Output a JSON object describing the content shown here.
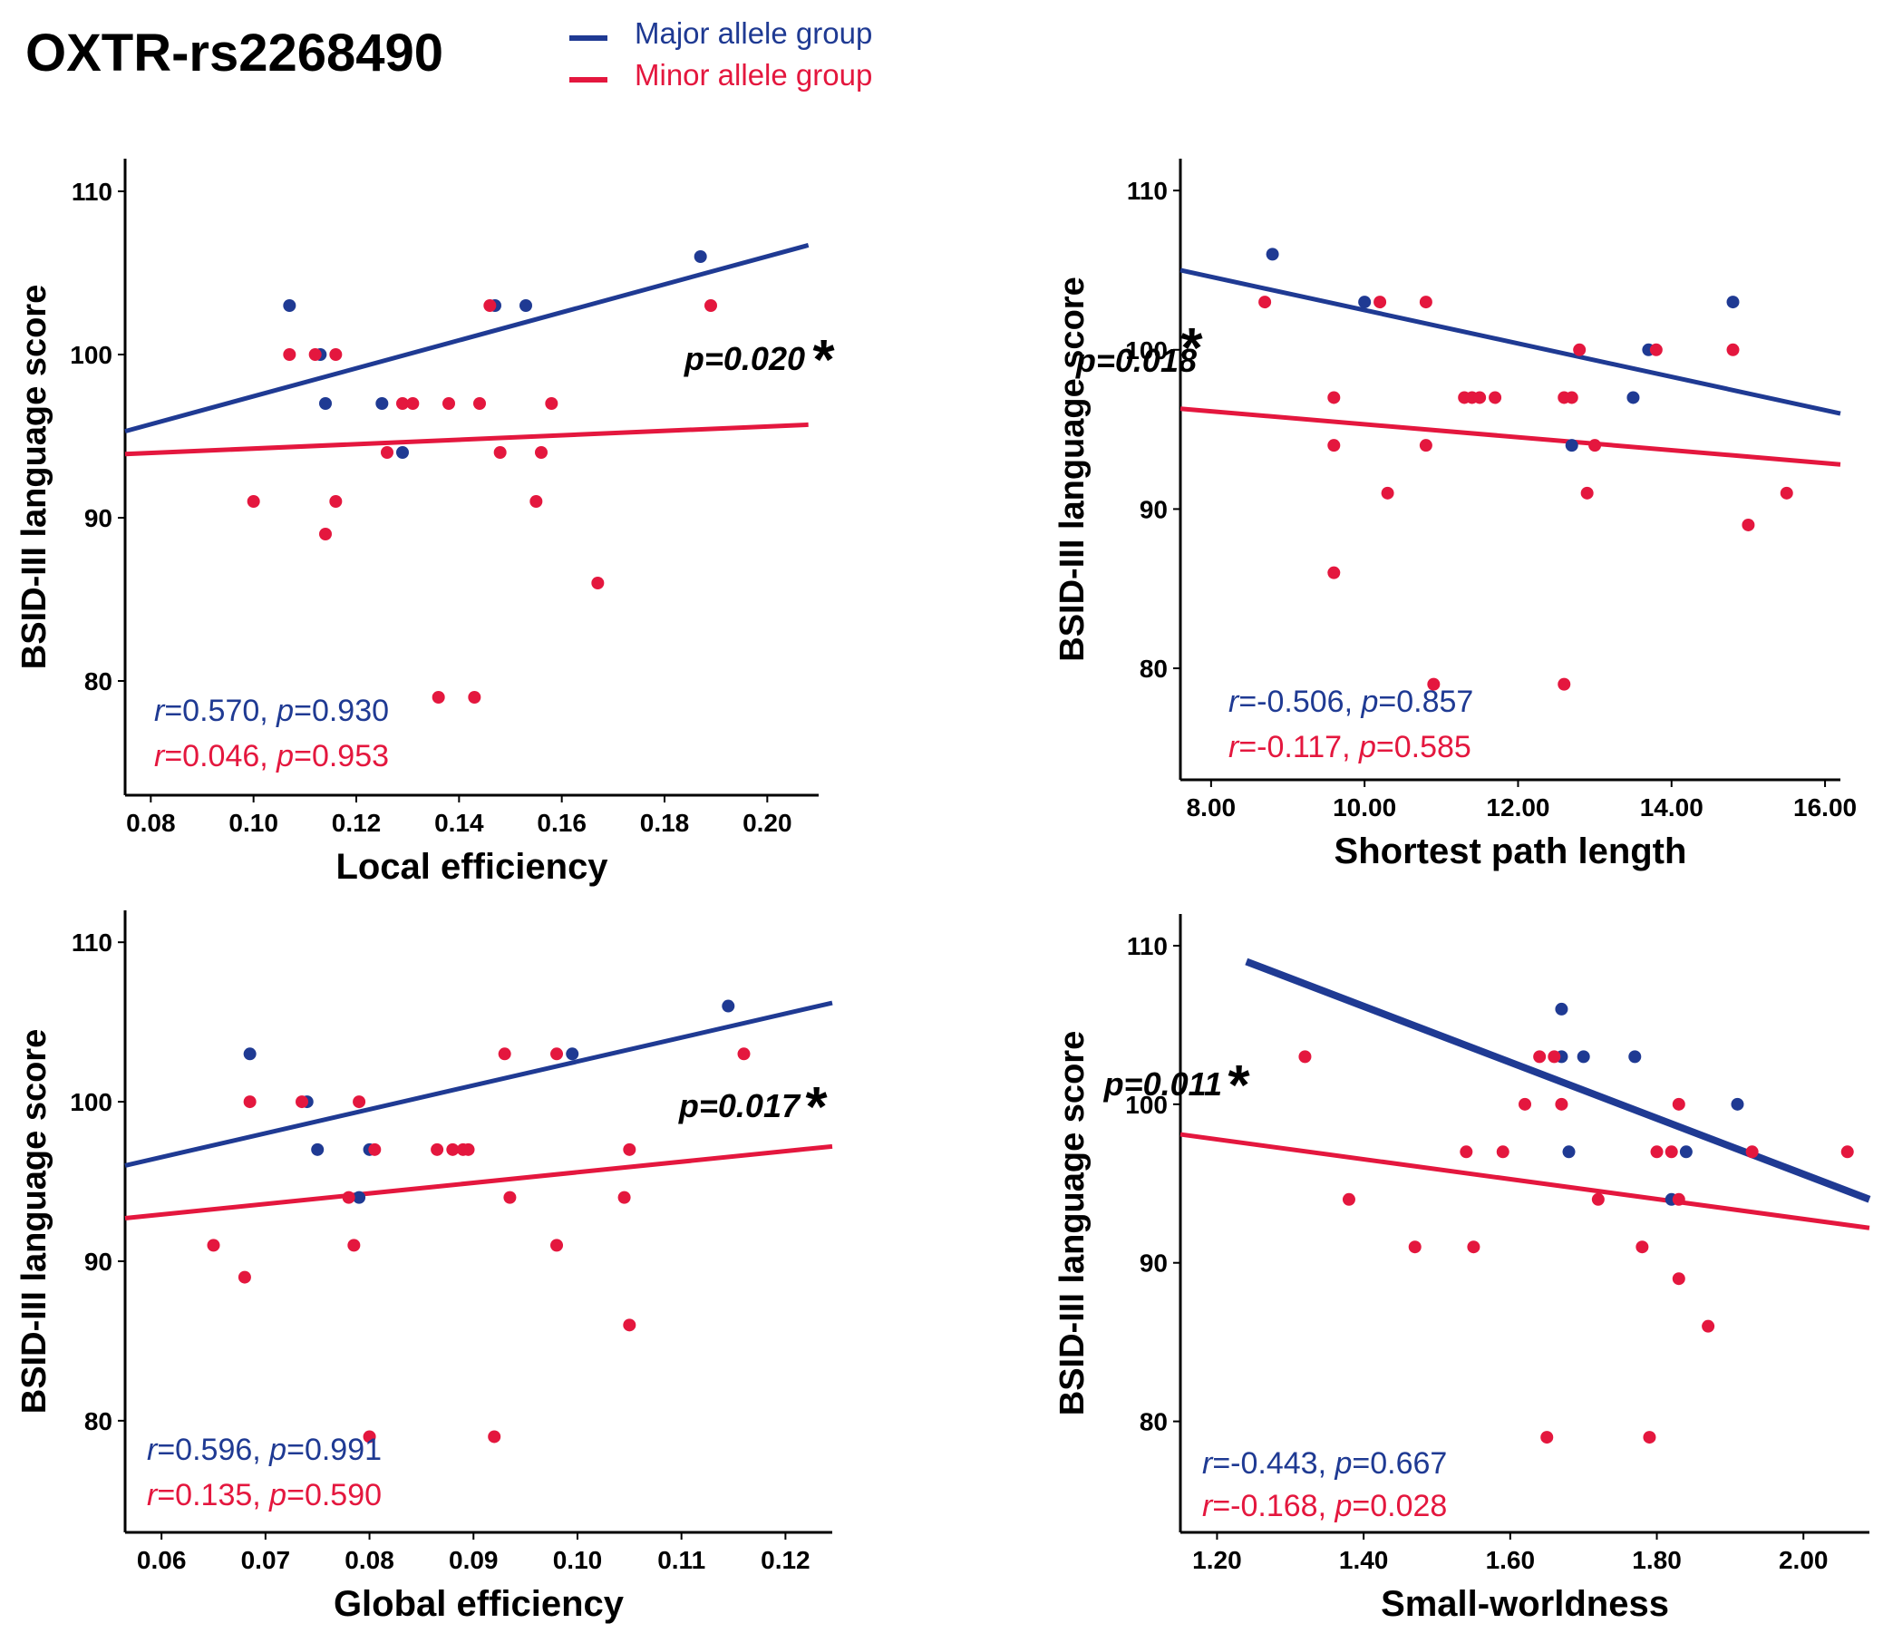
{
  "figure": {
    "title": "OXTR-rs2268490",
    "legend": [
      {
        "label": "Major allele group",
        "color": "#1f3a93"
      },
      {
        "label": "Minor allele group",
        "color": "#e4173e"
      }
    ]
  },
  "colors": {
    "major": "#1f3a93",
    "minor": "#e4173e",
    "axis": "#000000"
  },
  "chart_data": [
    {
      "type": "scatter",
      "xlabel": "Local efficiency",
      "ylabel": "BSID-III language score",
      "xlim": [
        0.075,
        0.21
      ],
      "ylim": [
        73,
        112
      ],
      "xticks": [
        0.08,
        0.1,
        0.12,
        0.14,
        0.16,
        0.18,
        0.2
      ],
      "xtick_labels": [
        "0.08",
        "0.10",
        "0.12",
        "0.14",
        "0.16",
        "0.18",
        "0.20"
      ],
      "yticks": [
        80,
        90,
        100,
        110
      ],
      "ytick_labels": [
        "80",
        "90",
        "100",
        "110"
      ],
      "series": [
        {
          "name": "Major allele group",
          "group": "major",
          "points": [
            [
              0.107,
              103
            ],
            [
              0.113,
              100
            ],
            [
              0.114,
              97
            ],
            [
              0.125,
              97
            ],
            [
              0.129,
              94
            ],
            [
              0.147,
              103
            ],
            [
              0.153,
              103
            ],
            [
              0.187,
              106
            ]
          ],
          "fit": [
            [
              0.075,
              95.3
            ],
            [
              0.208,
              106.7
            ]
          ]
        },
        {
          "name": "Minor allele group",
          "group": "minor",
          "points": [
            [
              0.1,
              91
            ],
            [
              0.107,
              100
            ],
            [
              0.112,
              100
            ],
            [
              0.114,
              89
            ],
            [
              0.116,
              100
            ],
            [
              0.116,
              91
            ],
            [
              0.126,
              94
            ],
            [
              0.129,
              97
            ],
            [
              0.131,
              97
            ],
            [
              0.136,
              79
            ],
            [
              0.138,
              97
            ],
            [
              0.143,
              79
            ],
            [
              0.144,
              97
            ],
            [
              0.146,
              103
            ],
            [
              0.148,
              94
            ],
            [
              0.155,
              91
            ],
            [
              0.156,
              94
            ],
            [
              0.158,
              97
            ],
            [
              0.167,
              86
            ],
            [
              0.189,
              103
            ]
          ],
          "fit": [
            [
              0.075,
              93.9
            ],
            [
              0.208,
              95.7
            ]
          ]
        }
      ],
      "pvalue_annotation": {
        "text": "p=0.020",
        "star": "*"
      },
      "stats": [
        {
          "group": "major",
          "r_label": "r",
          "r_value": "=0.570, ",
          "p_label": "p",
          "p_value": "=0.930"
        },
        {
          "group": "minor",
          "r_label": "r",
          "r_value": "=0.046, ",
          "p_label": "p",
          "p_value": "=0.953"
        }
      ]
    },
    {
      "type": "scatter",
      "xlabel": "Shortest path length",
      "ylabel": "BSID-III language score",
      "xlim": [
        7.6,
        16.2
      ],
      "ylim": [
        73,
        112
      ],
      "xticks": [
        8,
        10,
        12,
        14,
        16
      ],
      "xtick_labels": [
        "8.00",
        "10.00",
        "12.00",
        "14.00",
        "16.00"
      ],
      "yticks": [
        80,
        90,
        100,
        110
      ],
      "ytick_labels": [
        "80",
        "90",
        "100",
        "110"
      ],
      "series": [
        {
          "name": "Major allele group",
          "group": "major",
          "points": [
            [
              8.8,
              106
            ],
            [
              10.0,
              103
            ],
            [
              12.7,
              94
            ],
            [
              13.5,
              97
            ],
            [
              13.7,
              100
            ],
            [
              14.8,
              103
            ]
          ],
          "fit": [
            [
              7.6,
              105
            ],
            [
              16.2,
              96
            ]
          ]
        },
        {
          "name": "Minor allele group",
          "group": "minor",
          "points": [
            [
              8.7,
              103
            ],
            [
              9.6,
              97
            ],
            [
              9.6,
              94
            ],
            [
              9.6,
              86
            ],
            [
              10.2,
              103
            ],
            [
              10.3,
              91
            ],
            [
              10.8,
              103
            ],
            [
              10.9,
              79
            ],
            [
              10.8,
              94
            ],
            [
              11.3,
              97
            ],
            [
              11.4,
              97
            ],
            [
              11.5,
              97
            ],
            [
              11.7,
              97
            ],
            [
              12.6,
              97
            ],
            [
              12.6,
              79
            ],
            [
              12.7,
              97
            ],
            [
              12.8,
              100
            ],
            [
              12.9,
              91
            ],
            [
              13.0,
              94
            ],
            [
              13.8,
              100
            ],
            [
              14.8,
              100
            ],
            [
              15.0,
              89
            ],
            [
              15.5,
              91
            ]
          ],
          "fit": [
            [
              7.6,
              96.3
            ],
            [
              16.2,
              92.8
            ]
          ]
        }
      ],
      "pvalue_annotation": {
        "text": "p=0.018",
        "star": "*"
      },
      "stats": [
        {
          "group": "major",
          "r_label": "r",
          "r_value": "=-0.506, ",
          "p_label": "p",
          "p_value": "=0.857"
        },
        {
          "group": "minor",
          "r_label": "r",
          "r_value": "=-0.117, ",
          "p_label": "p",
          "p_value": "=0.585"
        }
      ]
    },
    {
      "type": "scatter",
      "xlabel": "Global efficiency",
      "ylabel": "BSID-III language score",
      "xlim": [
        0.0565,
        0.1245
      ],
      "ylim": [
        73,
        112
      ],
      "xticks": [
        0.06,
        0.07,
        0.08,
        0.09,
        0.1,
        0.11,
        0.12
      ],
      "xtick_labels": [
        "0.06",
        "0.07",
        "0.08",
        "0.09",
        "0.10",
        "0.11",
        "0.12"
      ],
      "yticks": [
        80,
        90,
        100,
        110
      ],
      "ytick_labels": [
        "80",
        "90",
        "100",
        "110"
      ],
      "series": [
        {
          "name": "Major allele group",
          "group": "major",
          "points": [
            [
              0.0685,
              103
            ],
            [
              0.074,
              100
            ],
            [
              0.075,
              97
            ],
            [
              0.079,
              94
            ],
            [
              0.08,
              97
            ],
            [
              0.0995,
              103
            ],
            [
              0.1145,
              106
            ]
          ],
          "fit": [
            [
              0.0565,
              96
            ],
            [
              0.1245,
              106.2
            ]
          ]
        },
        {
          "name": "Minor allele group",
          "group": "minor",
          "points": [
            [
              0.065,
              91
            ],
            [
              0.068,
              89
            ],
            [
              0.0685,
              100
            ],
            [
              0.0735,
              100
            ],
            [
              0.078,
              94
            ],
            [
              0.0785,
              91
            ],
            [
              0.079,
              100
            ],
            [
              0.0805,
              97
            ],
            [
              0.08,
              79
            ],
            [
              0.0865,
              97
            ],
            [
              0.088,
              97
            ],
            [
              0.089,
              97
            ],
            [
              0.0895,
              97
            ],
            [
              0.092,
              79
            ],
            [
              0.093,
              103
            ],
            [
              0.0935,
              94
            ],
            [
              0.098,
              103
            ],
            [
              0.098,
              91
            ],
            [
              0.1045,
              94
            ],
            [
              0.105,
              97
            ],
            [
              0.105,
              86
            ],
            [
              0.116,
              103
            ]
          ],
          "fit": [
            [
              0.0565,
              92.7
            ],
            [
              0.1245,
              97.2
            ]
          ]
        }
      ],
      "pvalue_annotation": {
        "text": "p=0.017",
        "star": "*"
      },
      "stats": [
        {
          "group": "major",
          "r_label": "r",
          "r_value": "=0.596, ",
          "p_label": "p",
          "p_value": "=0.991"
        },
        {
          "group": "minor",
          "r_label": "r",
          "r_value": "=0.135, ",
          "p_label": "p",
          "p_value": "=0.590"
        }
      ]
    },
    {
      "type": "scatter",
      "xlabel": "Small-worldness",
      "ylabel": "BSID-III language score",
      "xlim": [
        1.15,
        2.09
      ],
      "ylim": [
        73,
        112
      ],
      "xticks": [
        1.2,
        1.4,
        1.6,
        1.8,
        2.0
      ],
      "xtick_labels": [
        "1.20",
        "1.40",
        "1.60",
        "1.80",
        "2.00"
      ],
      "yticks": [
        80,
        90,
        100,
        110
      ],
      "ytick_labels": [
        "80",
        "90",
        "100",
        "110"
      ],
      "series": [
        {
          "name": "Major allele group",
          "group": "major",
          "points": [
            [
              1.67,
              106
            ],
            [
              1.67,
              103
            ],
            [
              1.7,
              103
            ],
            [
              1.68,
              97
            ],
            [
              1.77,
              103
            ],
            [
              1.82,
              94
            ],
            [
              1.84,
              97
            ],
            [
              1.91,
              100
            ]
          ],
          "fit": [
            [
              1.24,
              109
            ],
            [
              2.09,
              94
            ]
          ]
        },
        {
          "name": "Minor allele group",
          "group": "minor",
          "points": [
            [
              1.32,
              103
            ],
            [
              1.38,
              94
            ],
            [
              1.47,
              91
            ],
            [
              1.54,
              97
            ],
            [
              1.55,
              91
            ],
            [
              1.59,
              97
            ],
            [
              1.62,
              100
            ],
            [
              1.64,
              103
            ],
            [
              1.65,
              79
            ],
            [
              1.66,
              103
            ],
            [
              1.67,
              100
            ],
            [
              1.72,
              94
            ],
            [
              1.78,
              91
            ],
            [
              1.79,
              79
            ],
            [
              1.8,
              97
            ],
            [
              1.82,
              97
            ],
            [
              1.83,
              100
            ],
            [
              1.83,
              89
            ],
            [
              1.83,
              94
            ],
            [
              1.87,
              86
            ],
            [
              1.93,
              97
            ],
            [
              2.06,
              97
            ]
          ],
          "fit": [
            [
              1.15,
              98.1
            ],
            [
              2.09,
              92.2
            ]
          ]
        }
      ],
      "pvalue_annotation": {
        "text": "p=0.011",
        "star": "*"
      },
      "stats": [
        {
          "group": "major",
          "r_label": "r",
          "r_value": "=-0.443, ",
          "p_label": "p",
          "p_value": "=0.667"
        },
        {
          "group": "minor",
          "r_label": "r",
          "r_value": "=-0.168, ",
          "p_label": "p",
          "p_value": "=0.028"
        }
      ]
    }
  ]
}
